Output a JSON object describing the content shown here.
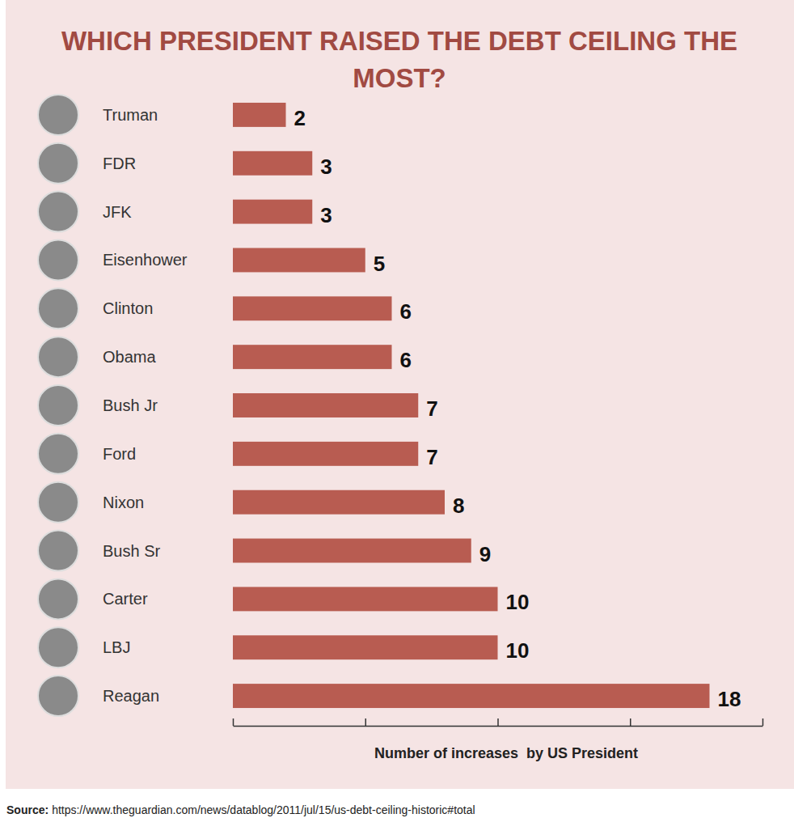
{
  "chart_data": {
    "type": "bar",
    "title": "WHICH PRESIDENT RAISED THE DEBT CEILING THE MOST?",
    "x_label": "Number of increases  by US President",
    "source_label": "Source:",
    "source": "https://www.theguardian.com/news/datablog/2011/jul/15/us-debt-ceiling-historic#total",
    "categories": [
      "Truman",
      "FDR",
      "JFK",
      "Eisenhower",
      "Clinton",
      "Obama",
      "Bush Jr",
      "Ford",
      "Nixon",
      "Bush Sr",
      "Carter",
      "LBJ",
      "Reagan"
    ],
    "values": [
      2,
      3,
      3,
      5,
      6,
      6,
      7,
      7,
      8,
      9,
      10,
      10,
      18
    ],
    "color": "#b85c51",
    "orientation": "horizontal",
    "data_labels": true,
    "tick_labels": false,
    "grid": false,
    "xlim": [
      0,
      20
    ],
    "xticks": [
      0,
      5,
      10,
      15,
      20
    ]
  }
}
